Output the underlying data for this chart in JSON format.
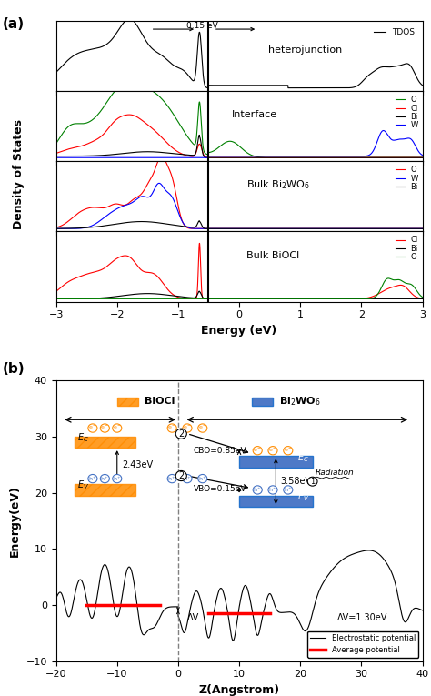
{
  "fermi_line": -0.65,
  "vline_x": -0.5,
  "xlim_a": [
    -3,
    3
  ],
  "xlabel_a": "Energy (eV)",
  "ylabel_a": "Density of States",
  "xlabel_b": "Z(Angstrom)",
  "ylabel_b": "Energy(eV)",
  "ylim_b": [
    -10,
    40
  ],
  "xlim_b": [
    -20,
    40
  ],
  "xticks_b": [
    -20,
    -10,
    0,
    10,
    20,
    30,
    40
  ],
  "yticks_b": [
    -10,
    0,
    10,
    20,
    30,
    40
  ],
  "xticks_a": [
    -3,
    -2,
    -1,
    0,
    1,
    2,
    3
  ],
  "biocl_color": "#FF8C00",
  "bwo_color": "#4472C4",
  "panel_a_label": "(a)",
  "panel_b_label": "(b)",
  "label_hetero": "heterojunction",
  "label_interface": "Interface",
  "label_bwo": "Bulk Bi$_2$WO$_6$",
  "label_biocl": "Bulk BiOCl",
  "tdos_label": "TDOS",
  "annot_015eV": "0.15 eV",
  "annot_cbo": "CBO=0.85eV",
  "annot_vbo": "VBO=0.15eV",
  "annot_243": "2.43eV",
  "annot_358": "3.58eV",
  "annot_dv": "ΔV",
  "annot_dv130": "ΔV=1.30eV",
  "annot_radiation": "Radiation",
  "legend_electrostatic": "Electrostatic potential",
  "legend_average": "Average potential"
}
